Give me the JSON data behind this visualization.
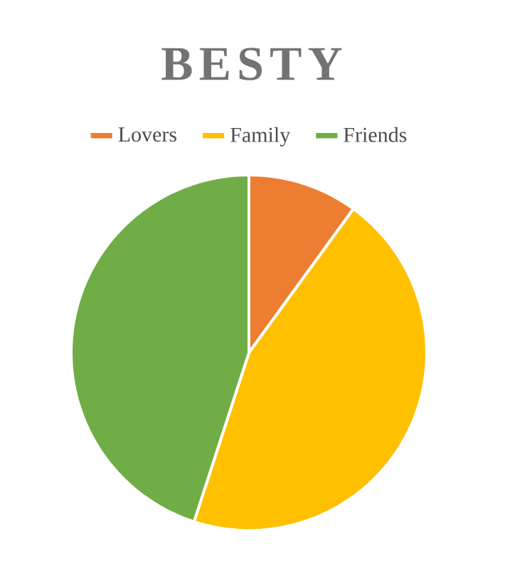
{
  "chart_data": {
    "type": "pie",
    "title": "BESTY",
    "categories": [
      "Lovers",
      "Family",
      "Friends"
    ],
    "values": [
      10,
      45,
      45
    ],
    "colors": [
      "#ed7d31",
      "#ffc000",
      "#70ad47"
    ],
    "legend": "top"
  }
}
